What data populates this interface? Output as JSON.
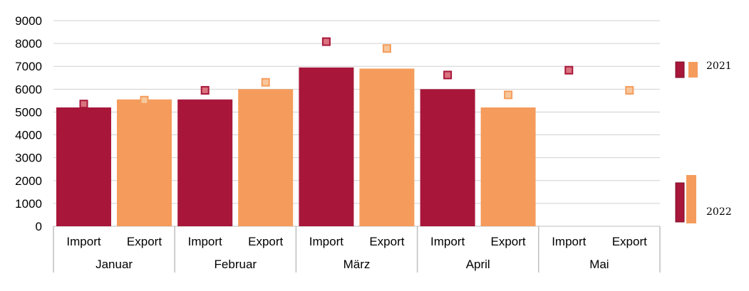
{
  "chart_data": {
    "type": "bar",
    "ylim": [
      0,
      9000
    ],
    "yticks": [
      0,
      1000,
      2000,
      3000,
      4000,
      5000,
      6000,
      7000,
      8000,
      9000
    ],
    "grid": true,
    "categories": [
      {
        "month": "Januar",
        "subs": [
          "Import",
          "Export"
        ]
      },
      {
        "month": "Februar",
        "subs": [
          "Import",
          "Export"
        ]
      },
      {
        "month": "März",
        "subs": [
          "Import",
          "Export"
        ]
      },
      {
        "month": "April",
        "subs": [
          "Import",
          "Export"
        ]
      },
      {
        "month": "Mai",
        "subs": [
          "Import",
          "Export"
        ]
      }
    ],
    "series": [
      {
        "name": "2022",
        "kind": "bars",
        "values": [
          [
            5200,
            5550
          ],
          [
            5550,
            6000
          ],
          [
            6950,
            6900
          ],
          [
            6000,
            5200
          ],
          [
            null,
            null
          ]
        ]
      },
      {
        "name": "2021",
        "kind": "markers",
        "values": [
          [
            5350,
            5520
          ],
          [
            5950,
            6300
          ],
          [
            8080,
            7780
          ],
          [
            6620,
            5750
          ],
          [
            6830,
            5950
          ]
        ]
      }
    ],
    "colors": {
      "import": "#a8163a",
      "export": "#f59c5c",
      "import_marker": "#d9737f",
      "export_marker": "#f7c79b",
      "import_marker_edge": "#a8163a",
      "export_marker_edge": "#f59c5c",
      "grid": "#d0d0d0",
      "axis": "#bfbfbf"
    },
    "legend": {
      "placement": "right",
      "entries": [
        "2021",
        "2022"
      ]
    }
  }
}
